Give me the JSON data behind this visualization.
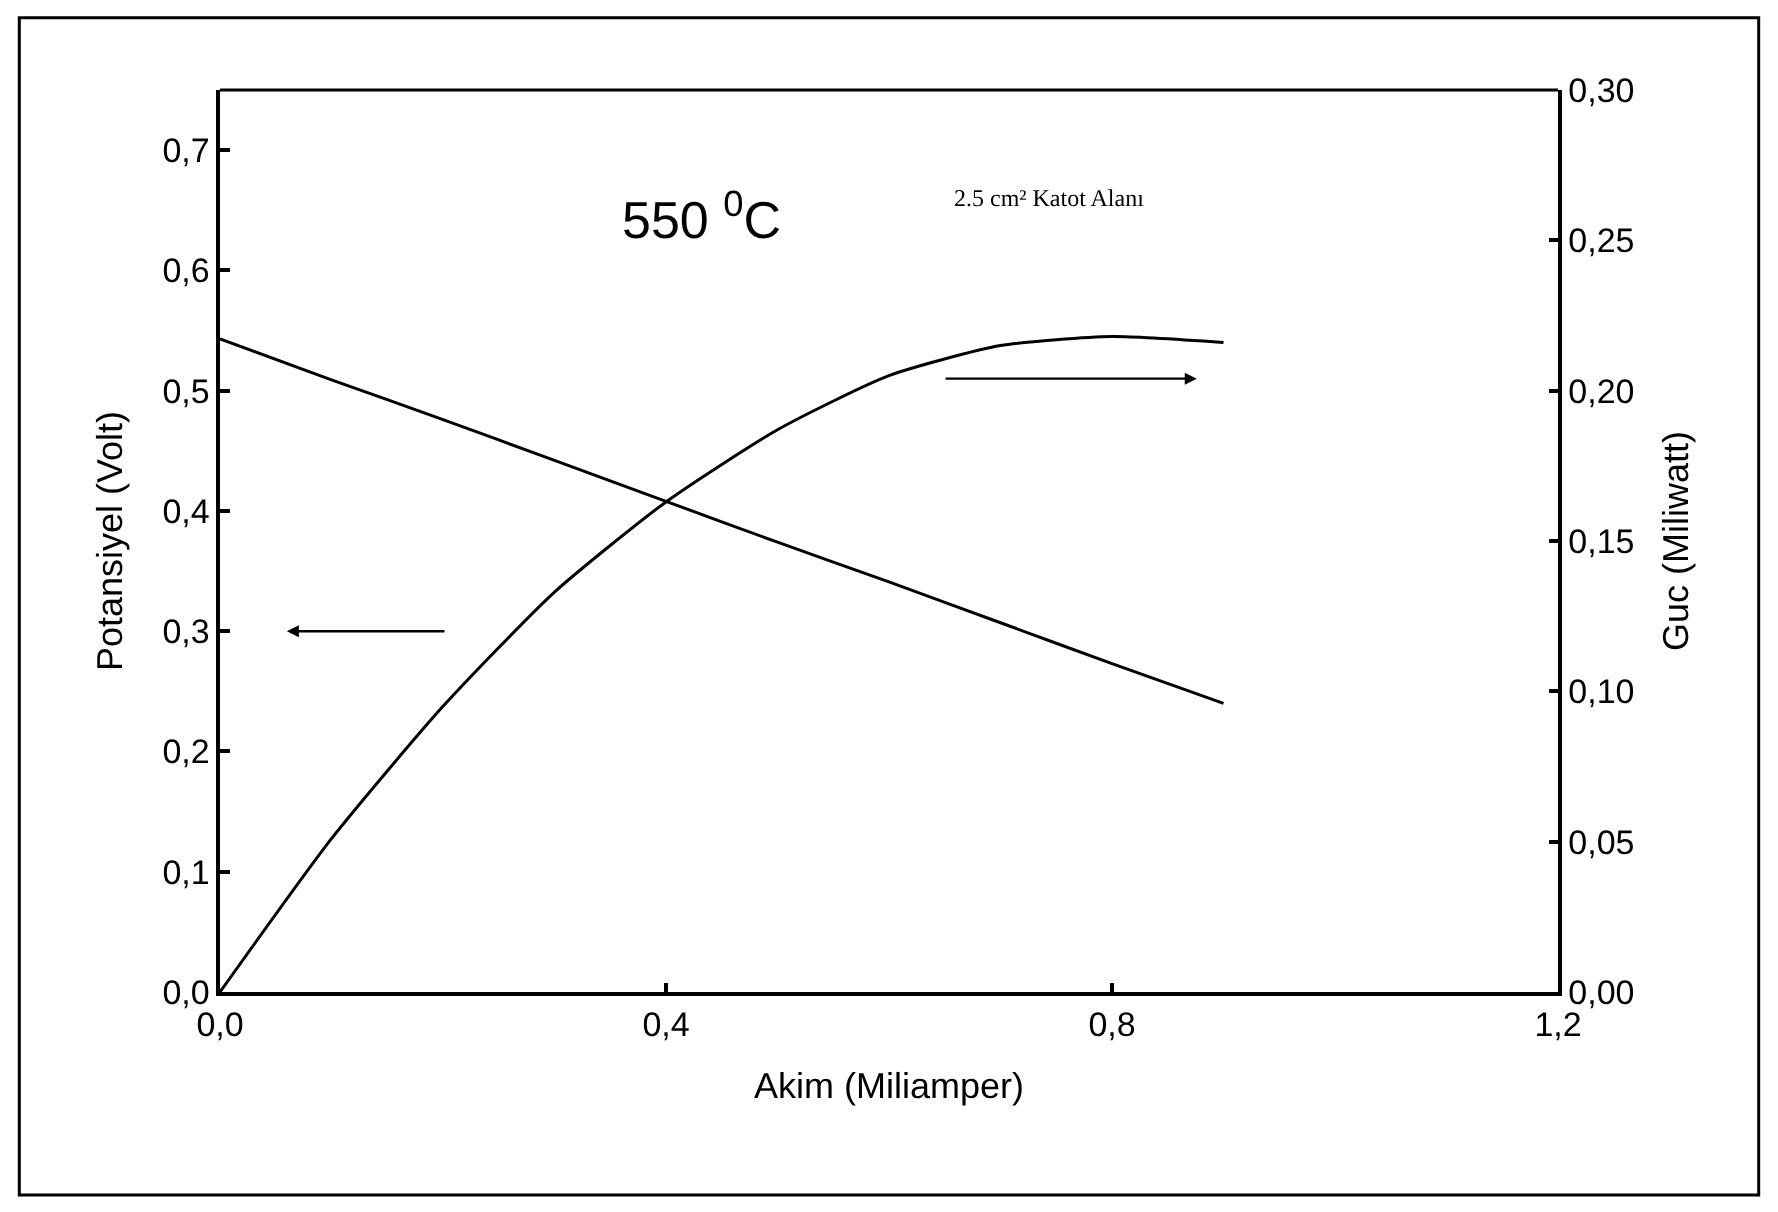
{
  "chart_data": {
    "type": "line",
    "xlabel": "Akim (Miliamper)",
    "ylabel": "Potansiyel (Volt)",
    "y2label": "Guc (Miliwatt)",
    "annotations": [
      "550 $^{0}$C",
      "2.5 cm² Katot Alanı"
    ],
    "x": [
      0,
      0.1,
      0.2,
      0.3,
      0.4,
      0.5,
      0.6,
      0.7,
      0.8,
      0.9
    ],
    "series": [
      {
        "color": "#000000",
        "values": [
          0.543,
          0.509,
          0.476,
          0.442,
          0.408,
          0.374,
          0.341,
          0.307,
          0.273,
          0.24
        ]
      },
      {
        "color": "#000000",
        "axis": "y2",
        "values": [
          0,
          0.051,
          0.095,
          0.133,
          0.163,
          0.187,
          0.205,
          0.215,
          0.218,
          0.216
        ]
      }
    ],
    "xlim": [
      0,
      1.2
    ],
    "xticks": [
      {
        "value": 0,
        "label": "0,0"
      },
      {
        "value": 0.4,
        "label": "0,4"
      },
      {
        "value": 0.8,
        "label": "0,8"
      },
      {
        "value": 1.2,
        "label": "1,2"
      }
    ],
    "ylim": [
      0,
      0.75
    ],
    "yticks": [
      {
        "value": 0,
        "label": "0,0"
      },
      {
        "value": 0.1,
        "label": "0,1"
      },
      {
        "value": 0.2,
        "label": "0,2"
      },
      {
        "value": 0.3,
        "label": "0,3"
      },
      {
        "value": 0.4,
        "label": "0,4"
      },
      {
        "value": 0.5,
        "label": "0,5"
      },
      {
        "value": 0.6,
        "label": "0,6"
      },
      {
        "value": 0.7,
        "label": "0,7"
      }
    ],
    "y2lim": [
      0,
      0.3
    ],
    "y2ticks": [
      {
        "value": 0,
        "label": "0,00"
      },
      {
        "value": 0.05,
        "label": "0,05"
      },
      {
        "value": 0.1,
        "label": "0,10"
      },
      {
        "value": 0.15,
        "label": "0,15"
      },
      {
        "value": 0.2,
        "label": "0,20"
      },
      {
        "value": 0.25,
        "label": "0,25"
      },
      {
        "value": 0.3,
        "label": "0,30"
      }
    ],
    "marker": "none",
    "line_style": "solid"
  }
}
